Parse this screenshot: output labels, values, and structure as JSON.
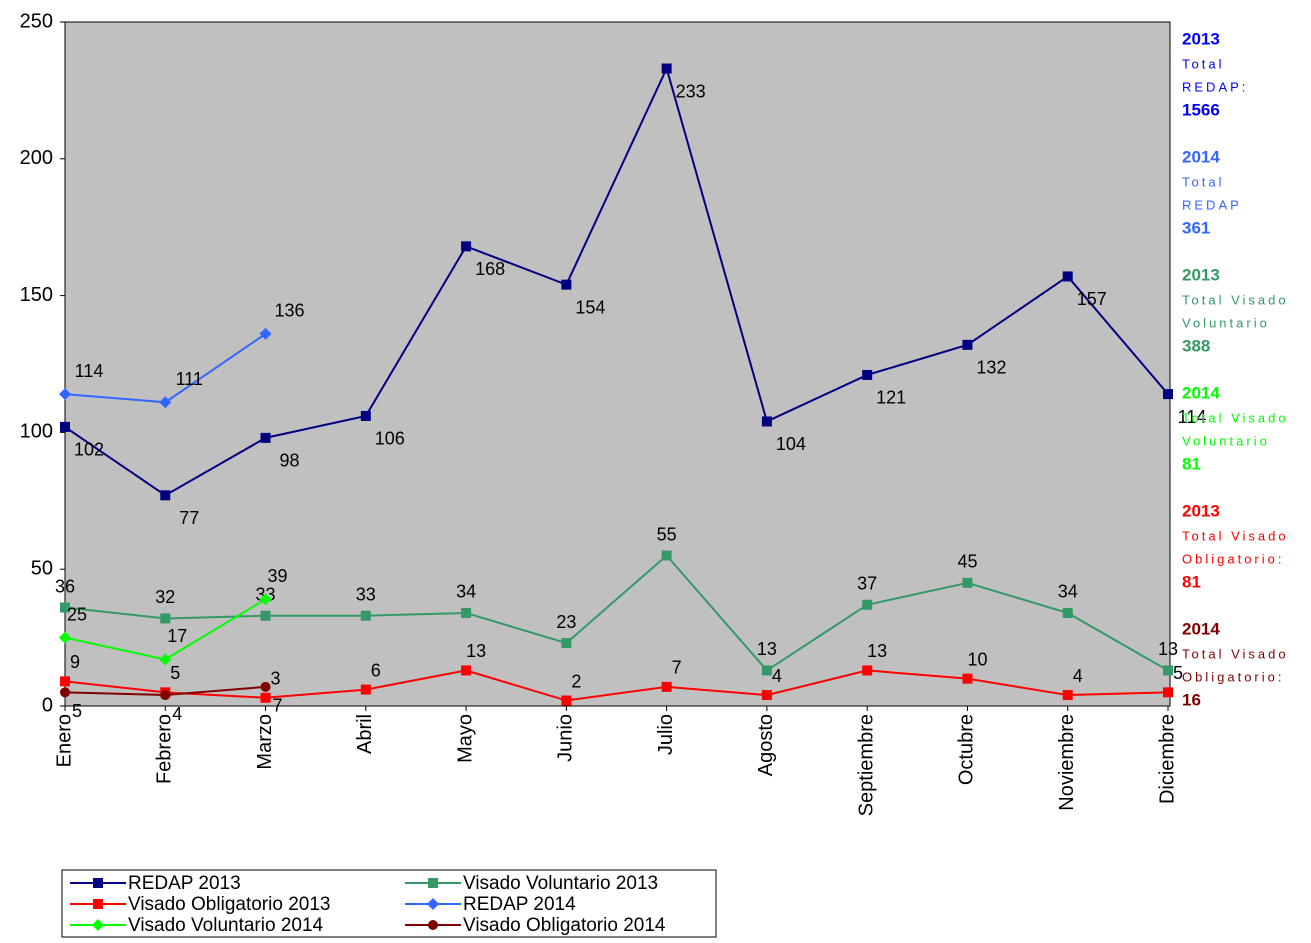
{
  "chart_data": {
    "type": "line",
    "categories": [
      "Enero",
      "Febrero",
      "Marzo",
      "Abril",
      "Mayo",
      "Junio",
      "Julio",
      "Agosto",
      "Septiembre",
      "Octubre",
      "Noviembre",
      "Diciembre"
    ],
    "ylim": [
      0,
      250
    ],
    "yticks": [
      0,
      50,
      100,
      150,
      200,
      250
    ],
    "series": [
      {
        "name": "REDAP 2013",
        "color": "#000080",
        "marker": "square",
        "values": [
          102,
          77,
          98,
          106,
          168,
          154,
          233,
          104,
          121,
          132,
          157,
          114
        ]
      },
      {
        "name": "Visado Voluntario 2013",
        "color": "#339966",
        "marker": "square",
        "values": [
          36,
          32,
          33,
          33,
          34,
          23,
          55,
          13,
          37,
          45,
          34,
          13
        ]
      },
      {
        "name": "Visado Obligatorio 2013",
        "color": "#ff0000",
        "marker": "square",
        "values": [
          9,
          5,
          3,
          6,
          13,
          2,
          7,
          4,
          13,
          10,
          4,
          5
        ]
      },
      {
        "name": "REDAP 2014",
        "color": "#3366ff",
        "marker": "diamond",
        "values": [
          114,
          111,
          136,
          null,
          null,
          null,
          null,
          null,
          null,
          null,
          null,
          null
        ]
      },
      {
        "name": "Visado Voluntario 2014",
        "color": "#00ff00",
        "marker": "diamond",
        "values": [
          25,
          17,
          39,
          null,
          null,
          null,
          null,
          null,
          null,
          null,
          null,
          null
        ]
      },
      {
        "name": "Visado Obligatorio 2014",
        "color": "#800000",
        "marker": "circle",
        "values": [
          5,
          4,
          7,
          null,
          null,
          null,
          null,
          null,
          null,
          null,
          null,
          null
        ]
      }
    ],
    "annotations": [
      {
        "year": "2013",
        "lines": [
          "Total",
          "REDAP:"
        ],
        "total": "1566",
        "color": "#0000ff"
      },
      {
        "year": "2014",
        "lines": [
          "Total",
          "REDAP"
        ],
        "total": "361",
        "color": "#3366ff"
      },
      {
        "year": "2013",
        "lines": [
          "Total Visado",
          "Voluntario"
        ],
        "total": "388",
        "color": "#339966"
      },
      {
        "year": "2014",
        "lines": [
          "Total Visado",
          "Voluntario"
        ],
        "total": "81",
        "color": "#00ff00"
      },
      {
        "year": "2013",
        "lines": [
          "Total Visado",
          "Obligatorio:"
        ],
        "total": "81",
        "color": "#ff0000"
      },
      {
        "year": "2014",
        "lines": [
          "Total Visado",
          "Obligatorio:"
        ],
        "total": "16",
        "color": "#800000"
      }
    ]
  }
}
